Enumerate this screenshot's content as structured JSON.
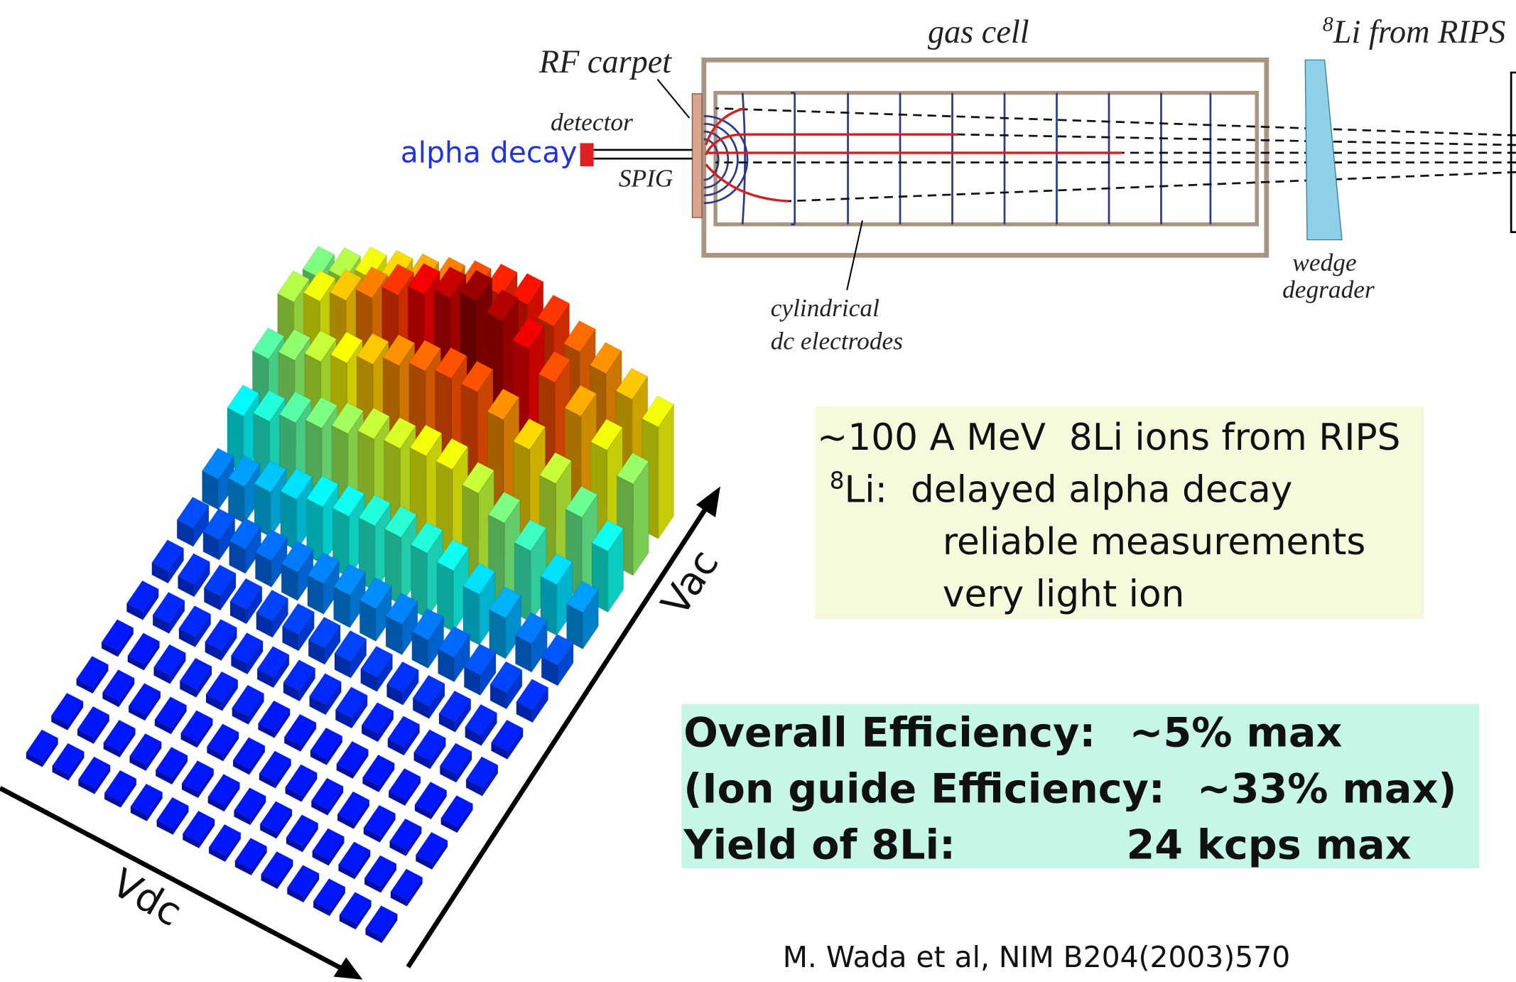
{
  "diagram": {
    "gas_cell": "gas cell",
    "rf_carpet": "RF carpet",
    "source": {
      "sup": "8",
      "text": "Li from RIPS"
    },
    "detector": "detector",
    "alpha_decay": "alpha decay",
    "spig": "SPIG",
    "wedge_degrader": [
      "wedge",
      "degrader"
    ],
    "electrodes": [
      "cylindrical",
      "dc electrodes"
    ]
  },
  "info_box": {
    "line1": "~100 A MeV  8Li ions from RIPS",
    "line2": {
      "sup": "8",
      "text": "Li:  delayed alpha decay"
    },
    "line3": "reliable measurements",
    "line4": "very light ion"
  },
  "efficiency_box": {
    "rows": [
      [
        "Overall Efficiency:",
        "~5% max"
      ],
      [
        "(Ion guide Efficiency:",
        "~33% max)"
      ],
      [
        "Yield of 8Li:",
        "24 kcps max"
      ]
    ]
  },
  "citation": "M. Wada et al, NIM B204(2003)570",
  "chart_data": {
    "type": "bar3d",
    "x_label": "Vdc",
    "y_label": "Vac",
    "values": [
      [
        3,
        3,
        3,
        3,
        4,
        4,
        6,
        10,
        18,
        30,
        45,
        55
      ],
      [
        3,
        3,
        3,
        3,
        4,
        5,
        8,
        14,
        25,
        40,
        55,
        62
      ],
      [
        3,
        3,
        3,
        3,
        4,
        5,
        10,
        20,
        35,
        50,
        65,
        68
      ],
      [
        3,
        3,
        3,
        3,
        4,
        6,
        12,
        25,
        42,
        60,
        75,
        72
      ],
      [
        3,
        3,
        3,
        3,
        4,
        6,
        14,
        30,
        50,
        68,
        85,
        78
      ],
      [
        3,
        3,
        3,
        3,
        5,
        7,
        15,
        32,
        55,
        75,
        92,
        82
      ],
      [
        3,
        3,
        3,
        3,
        5,
        8,
        16,
        33,
        55,
        75,
        95,
        80
      ],
      [
        3,
        3,
        3,
        3,
        5,
        8,
        16,
        32,
        52,
        72,
        90,
        75
      ],
      [
        3,
        3,
        3,
        4,
        5,
        8,
        15,
        30,
        50,
        68,
        85,
        70
      ],
      [
        3,
        3,
        3,
        4,
        5,
        8,
        14,
        28,
        46,
        62,
        78,
        65
      ],
      [
        3,
        3,
        3,
        4,
        5,
        7,
        13,
        25,
        42,
        56,
        70,
        60
      ],
      [
        3,
        3,
        3,
        4,
        5,
        7,
        12,
        22,
        38,
        50,
        62,
        55
      ],
      [
        3,
        3,
        3,
        3,
        5,
        6,
        10,
        18,
        32,
        44,
        55,
        48
      ],
      [
        3,
        3,
        3,
        3,
        4,
        6,
        9,
        15,
        28,
        38,
        48,
        42
      ]
    ]
  }
}
